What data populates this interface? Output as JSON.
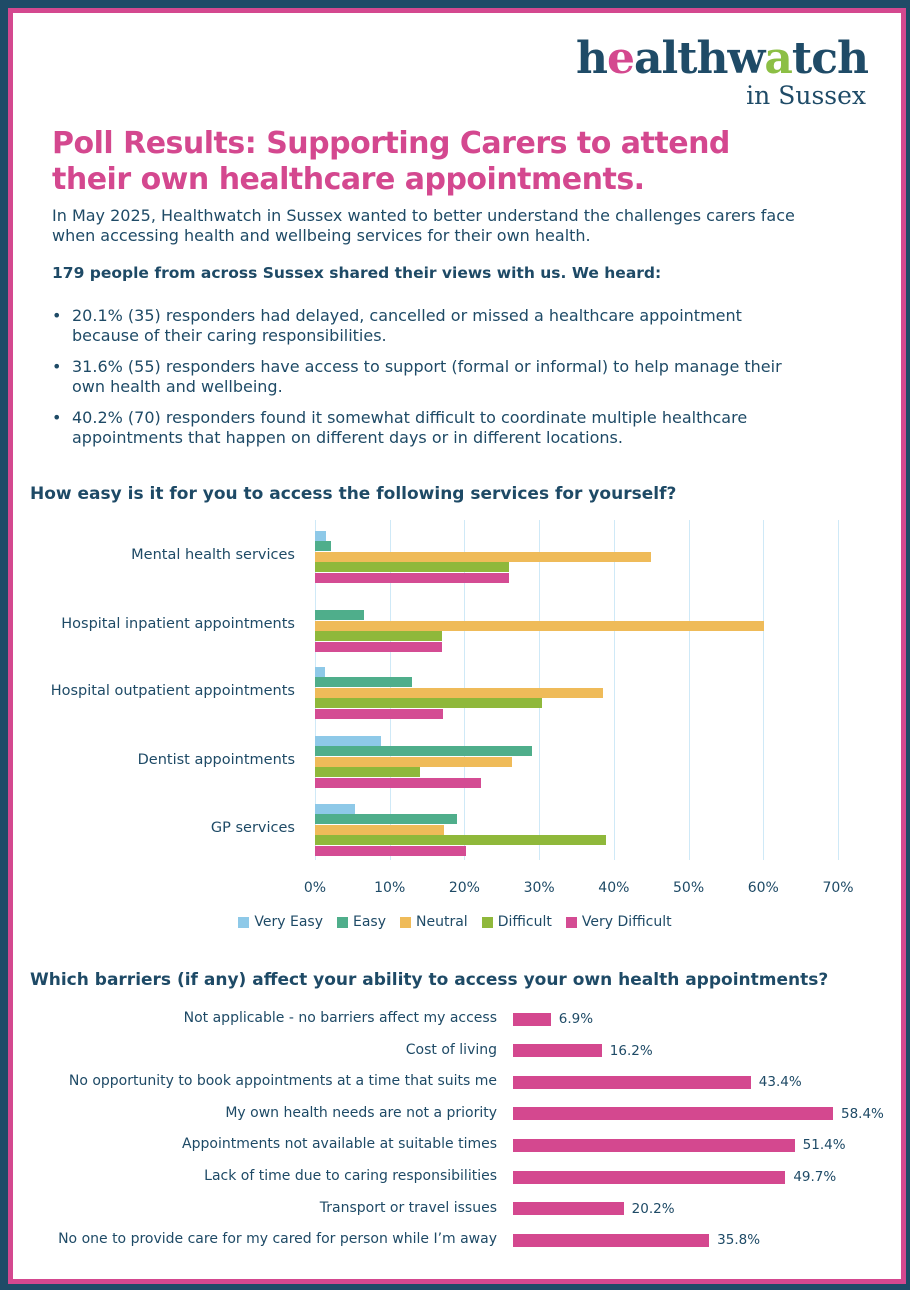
{
  "logo": {
    "brand": "healthwatch",
    "region": "in Sussex"
  },
  "title": "Poll Results: Supporting Carers to attend their own healthcare appointments.",
  "intro": "In May 2025, Healthwatch in Sussex wanted to better understand the challenges carers face when accessing health and wellbeing services for their own health.",
  "lead": "179 people from across Sussex shared their views with us. We heard:",
  "bullets": [
    "20.1% (35) responders had delayed, cancelled or missed a healthcare appointment because of their caring responsibilities.",
    "31.6% (55) responders have access to support (formal or informal) to help manage their own health and wellbeing.",
    "40.2% (70) responders found it somewhat difficult to coordinate multiple healthcare appointments that happen on different days or in different locations."
  ],
  "colors": {
    "navy": "#1f4b67",
    "pink": "#d4488f",
    "very_easy": "#8ec9e8",
    "easy": "#4fae8b",
    "neutral": "#efbb59",
    "difficult": "#8fb83b",
    "very_difficult": "#d44c93"
  },
  "chart_data": [
    {
      "type": "bar",
      "orientation": "horizontal",
      "title": "How easy is it for you to access the following services for yourself?",
      "categories": [
        "Mental health services",
        "Hospital inpatient appointments",
        "Hospital outpatient appointments",
        "Dentist appointments",
        "GP services"
      ],
      "series": [
        {
          "name": "Very Easy",
          "values": [
            1.5,
            0,
            1.4,
            8.9,
            5.4
          ]
        },
        {
          "name": "Easy",
          "values": [
            2.1,
            6.5,
            13.0,
            29.1,
            19.0
          ]
        },
        {
          "name": "Neutral",
          "values": [
            45.0,
            60.1,
            38.6,
            26.4,
            17.3
          ]
        },
        {
          "name": "Difficult",
          "values": [
            26.0,
            17.0,
            30.4,
            14.1,
            39.0
          ]
        },
        {
          "name": "Very Difficult",
          "values": [
            26.0,
            17.0,
            17.1,
            22.2,
            20.2
          ]
        }
      ],
      "xlim": [
        0,
        70
      ],
      "xticks": [
        "0%",
        "10%",
        "20%",
        "30%",
        "40%",
        "50%",
        "60%",
        "70%"
      ],
      "grid": true,
      "legend": "bottom"
    },
    {
      "type": "bar",
      "orientation": "horizontal",
      "title": "Which barriers (if any) affect your ability to access your own health appointments?",
      "categories": [
        "Not applicable - no barriers affect my access",
        "Cost of living",
        "No opportunity to book appointments at a time that suits me",
        "My own health needs are not a priority",
        "Appointments not available at suitable times",
        "Lack of time due to caring responsibilities",
        "Transport or travel issues",
        "No one to provide care for my cared for person while I’m away"
      ],
      "values": [
        6.9,
        16.2,
        43.4,
        58.4,
        51.4,
        49.7,
        20.2,
        35.8
      ],
      "labels": [
        "6.9%",
        "16.2%",
        "43.4%",
        "58.4%",
        "51.4%",
        "49.7%",
        "20.2%",
        "35.8%"
      ],
      "xlim": [
        0,
        60
      ],
      "grid": false
    }
  ]
}
